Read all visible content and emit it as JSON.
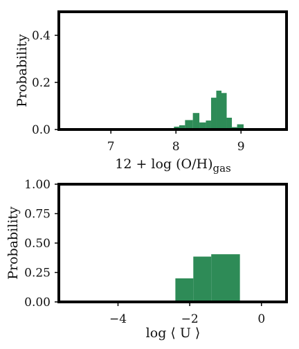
{
  "colors": {
    "bar": "#2e8b57",
    "frame": "#000000",
    "background": "#ffffff"
  },
  "chart_data": [
    {
      "type": "bar",
      "title": "",
      "xlabel": "12 + log (O/H)",
      "xlabel_sub": "gas",
      "ylabel": "Probability",
      "xlim": [
        6.2,
        9.7
      ],
      "ylim": [
        0,
        0.5
      ],
      "xticks": [
        7,
        8,
        9
      ],
      "yticks": [
        "0.0",
        "0.2",
        "0.4"
      ],
      "bins": [
        {
          "x0": 7.8,
          "x1": 7.88,
          "y": 0.004
        },
        {
          "x0": 7.88,
          "x1": 7.97,
          "y": 0.006
        },
        {
          "x0": 7.97,
          "x1": 8.05,
          "y": 0.012
        },
        {
          "x0": 8.05,
          "x1": 8.14,
          "y": 0.018
        },
        {
          "x0": 8.14,
          "x1": 8.26,
          "y": 0.04
        },
        {
          "x0": 8.26,
          "x1": 8.36,
          "y": 0.07
        },
        {
          "x0": 8.36,
          "x1": 8.46,
          "y": 0.03
        },
        {
          "x0": 8.46,
          "x1": 8.54,
          "y": 0.038
        },
        {
          "x0": 8.54,
          "x1": 8.62,
          "y": 0.135
        },
        {
          "x0": 8.62,
          "x1": 8.7,
          "y": 0.165
        },
        {
          "x0": 8.7,
          "x1": 8.78,
          "y": 0.155
        },
        {
          "x0": 8.78,
          "x1": 8.86,
          "y": 0.05
        },
        {
          "x0": 8.86,
          "x1": 8.94,
          "y": 0.01
        },
        {
          "x0": 8.94,
          "x1": 9.04,
          "y": 0.022
        }
      ]
    },
    {
      "type": "bar",
      "title": "",
      "xlabel": "log ⟨ U ⟩",
      "ylabel": "Probability",
      "xlim": [
        -5.65,
        0.7
      ],
      "ylim": [
        0,
        1.0
      ],
      "xticks": [
        -4,
        -2,
        0
      ],
      "yticks": [
        "0.00",
        "0.25",
        "0.50",
        "0.75",
        "1.00"
      ],
      "bins": [
        {
          "x0": -2.4,
          "x1": -1.9,
          "y": 0.2
        },
        {
          "x0": -1.9,
          "x1": -1.4,
          "y": 0.385
        },
        {
          "x0": -1.4,
          "x1": -0.6,
          "y": 0.405
        }
      ]
    }
  ]
}
